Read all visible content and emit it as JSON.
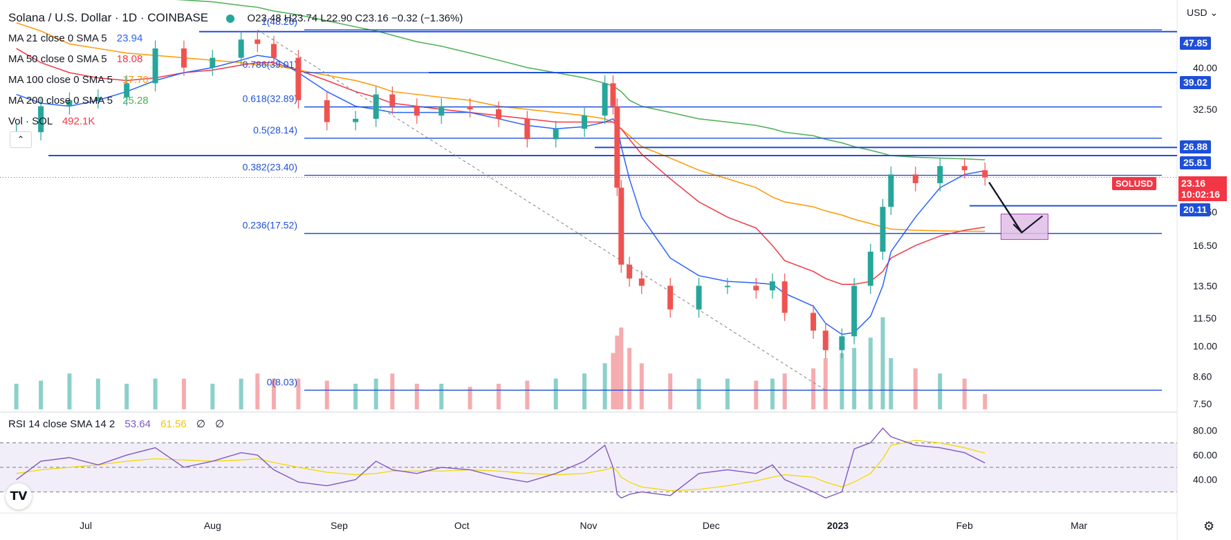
{
  "header": {
    "title": "Solana / U.S. Dollar · 1D · COINBASE",
    "ohlc": "O23.48 H23.74 L22.90 C23.16 −0.32 (−1.36%)"
  },
  "indicators": [
    {
      "label": "MA 21 close 0 SMA 5",
      "value": "23.94",
      "color": "#2962ff"
    },
    {
      "label": "MA 50 close 0 SMA 5",
      "value": "18.08",
      "color": "#f23645"
    },
    {
      "label": "MA 100 close 0 SMA 5",
      "value": "17.70",
      "color": "#ff9800"
    },
    {
      "label": "MA 200 close 0 SMA 5",
      "value": "25.28",
      "color": "#4caf50"
    },
    {
      "label": "Vol · SOL",
      "value": "492.1K",
      "color": "#f23645"
    }
  ],
  "collapse_icon": "chevron-up-icon",
  "currency": "USD",
  "rsi": {
    "label": "RSI 14 close SMA 14 2",
    "value": "53.64",
    "sma": "61.56",
    "z1": "∅",
    "z2": "∅",
    "ticks": [
      "80.00",
      "60.00",
      "40.00"
    ],
    "upper": 70,
    "mid": 50,
    "lower": 30
  },
  "price_axis": [
    "40.00",
    "32.50",
    "19.50",
    "16.50",
    "13.50",
    "11.50",
    "10.00",
    "8.60",
    "7.50"
  ],
  "last_price": {
    "symbol": "SOLUSD",
    "price": "23.16",
    "countdown": "10:02:16"
  },
  "x_axis": [
    "Jul",
    "Aug",
    "Sep",
    "Oct",
    "Nov",
    "Dec",
    "2023",
    "Feb",
    "Mar"
  ],
  "fib_levels": [
    {
      "label": "1(48.26)",
      "price": 48.26
    },
    {
      "label": "0.786(39.01)",
      "price": 39.01
    },
    {
      "label": "0.618(32.89)",
      "price": 32.89
    },
    {
      "label": "0.5(28.14)",
      "price": 28.14
    },
    {
      "label": "0.382(23.40)",
      "price": 23.4
    },
    {
      "label": "0.236(17.52)",
      "price": 17.52
    },
    {
      "label": "0(8.03)",
      "price": 8.03
    }
  ],
  "horizontal_levels": [
    "47.85",
    "39.02",
    "26.88",
    "25.81",
    "20.11"
  ],
  "colors": {
    "up": "#26a69a",
    "down": "#ef5350",
    "level": "#1e4fd8",
    "ma21": "#2962ff",
    "ma50": "#f23645",
    "ma100": "#ff9800",
    "ma200": "#4caf50",
    "rsi": "#7e57c2",
    "rsi_ma": "#f5d800"
  },
  "logo_icon": "tradingview-logo-icon",
  "settings_icon": "gear-icon",
  "chart_data": {
    "type": "candlestick",
    "title": "Solana / U.S. Dollar · 1D · COINBASE",
    "x_range": [
      "2022-06-10",
      "2023-03-25"
    ],
    "y_scale": "log",
    "ylim": [
      7.3,
      56
    ],
    "x": [
      "2022-06-14",
      "2022-06-20",
      "2022-06-27",
      "2022-07-04",
      "2022-07-11",
      "2022-07-18",
      "2022-07-25",
      "2022-08-01",
      "2022-08-08",
      "2022-08-12",
      "2022-08-16",
      "2022-08-22",
      "2022-08-29",
      "2022-09-05",
      "2022-09-10",
      "2022-09-14",
      "2022-09-20",
      "2022-09-26",
      "2022-10-03",
      "2022-10-10",
      "2022-10-17",
      "2022-10-24",
      "2022-10-31",
      "2022-11-05",
      "2022-11-07",
      "2022-11-08",
      "2022-11-09",
      "2022-11-11",
      "2022-11-14",
      "2022-11-21",
      "2022-11-28",
      "2022-12-05",
      "2022-12-12",
      "2022-12-16",
      "2022-12-19",
      "2022-12-26",
      "2022-12-29",
      "2023-01-02",
      "2023-01-05",
      "2023-01-09",
      "2023-01-12",
      "2023-01-14",
      "2023-01-20",
      "2023-01-26",
      "2023-02-01",
      "2023-02-06"
    ],
    "close": [
      29.0,
      33.0,
      34.0,
      34.5,
      37.0,
      44.0,
      40.0,
      42.0,
      46.0,
      45.0,
      42.0,
      34.0,
      30.5,
      31.0,
      35.0,
      33.0,
      31.5,
      33.0,
      32.5,
      31.0,
      28.0,
      29.5,
      31.5,
      37.0,
      33.0,
      22.0,
      15.0,
      14.0,
      13.5,
      12.0,
      13.5,
      13.5,
      13.2,
      13.8,
      11.8,
      10.8,
      9.8,
      10.5,
      13.5,
      16.0,
      20.0,
      23.5,
      22.5,
      24.5,
      24.0,
      23.16
    ],
    "ma21": [
      35.0,
      33.5,
      33.0,
      34.0,
      35.5,
      37.5,
      39.0,
      40.0,
      41.5,
      42.5,
      42.0,
      39.0,
      35.5,
      33.0,
      32.5,
      32.0,
      32.0,
      32.0,
      32.0,
      31.0,
      30.0,
      29.5,
      29.8,
      30.5,
      31.0,
      30.0,
      27.0,
      23.0,
      19.0,
      15.5,
      14.2,
      13.8,
      13.7,
      13.6,
      13.0,
      12.2,
      11.2,
      10.6,
      10.7,
      11.6,
      13.5,
      16.0,
      19.0,
      22.0,
      23.5,
      23.94
    ],
    "ma50": [
      44.0,
      41.0,
      39.0,
      38.0,
      37.5,
      38.0,
      39.0,
      39.5,
      40.5,
      41.0,
      41.0,
      39.5,
      37.5,
      35.5,
      34.5,
      33.5,
      33.0,
      32.5,
      32.0,
      31.5,
      31.0,
      30.5,
      30.5,
      30.5,
      30.5,
      30.0,
      29.5,
      28.0,
      26.0,
      23.0,
      20.5,
      19.0,
      18.0,
      16.5,
      15.3,
      14.5,
      14.0,
      13.6,
      13.6,
      13.8,
      14.5,
      15.5,
      16.5,
      17.3,
      17.8,
      18.08
    ],
    "ma100": [
      50.0,
      48.0,
      45.0,
      44.0,
      43.0,
      42.5,
      42.0,
      41.5,
      41.0,
      40.5,
      40.5,
      39.5,
      38.5,
      37.5,
      36.5,
      35.5,
      35.0,
      34.5,
      34.0,
      33.0,
      32.5,
      32.0,
      31.5,
      31.0,
      30.5,
      30.0,
      29.5,
      28.5,
      27.0,
      25.5,
      24.0,
      23.0,
      22.0,
      21.0,
      20.5,
      20.0,
      19.6,
      19.2,
      18.8,
      18.4,
      18.1,
      17.9,
      17.8,
      17.75,
      17.72,
      17.7
    ],
    "ma200": [
      60.0,
      59.0,
      58.0,
      57.5,
      57.0,
      56.5,
      56.0,
      55.5,
      54.5,
      54.0,
      53.0,
      52.0,
      50.5,
      49.0,
      48.0,
      47.0,
      45.5,
      44.5,
      43.0,
      41.5,
      40.0,
      39.0,
      38.0,
      37.0,
      36.5,
      36.0,
      35.5,
      34.0,
      33.0,
      32.0,
      31.0,
      30.5,
      30.0,
      29.5,
      29.0,
      28.5,
      28.0,
      27.5,
      27.0,
      26.5,
      26.1,
      25.8,
      25.6,
      25.5,
      25.4,
      25.28
    ],
    "volume": [
      0.25,
      0.28,
      0.35,
      0.3,
      0.25,
      0.3,
      0.3,
      0.25,
      0.3,
      0.35,
      0.3,
      0.3,
      0.28,
      0.25,
      0.3,
      0.35,
      0.25,
      0.25,
      0.22,
      0.25,
      0.28,
      0.3,
      0.35,
      0.45,
      0.55,
      0.72,
      0.8,
      0.6,
      0.45,
      0.35,
      0.3,
      0.3,
      0.28,
      0.3,
      0.35,
      0.4,
      0.5,
      0.55,
      0.6,
      0.7,
      0.9,
      0.5,
      0.4,
      0.35,
      0.3,
      0.15
    ],
    "rsi": [
      40,
      55,
      58,
      52,
      60,
      66,
      50,
      55,
      62,
      60,
      48,
      38,
      35,
      40,
      55,
      48,
      45,
      50,
      48,
      42,
      38,
      45,
      55,
      68,
      50,
      28,
      25,
      28,
      30,
      27,
      45,
      48,
      45,
      52,
      40,
      30,
      25,
      30,
      65,
      70,
      82,
      75,
      68,
      66,
      62,
      53.64
    ],
    "rsi_ma": [
      45,
      48,
      50,
      52,
      55,
      57,
      56,
      55,
      56,
      57,
      54,
      50,
      46,
      44,
      45,
      47,
      47,
      47,
      48,
      47,
      45,
      44,
      45,
      48,
      50,
      47,
      42,
      38,
      34,
      31,
      32,
      35,
      39,
      42,
      44,
      42,
      38,
      34,
      38,
      45,
      57,
      68,
      72,
      70,
      66,
      61.56
    ],
    "projection": {
      "from_date": "2023-02-07",
      "from_price": 22.6,
      "to_date": "2023-02-15",
      "to_price": 17.6,
      "target_zone": [
        17.0,
        19.3
      ]
    }
  }
}
